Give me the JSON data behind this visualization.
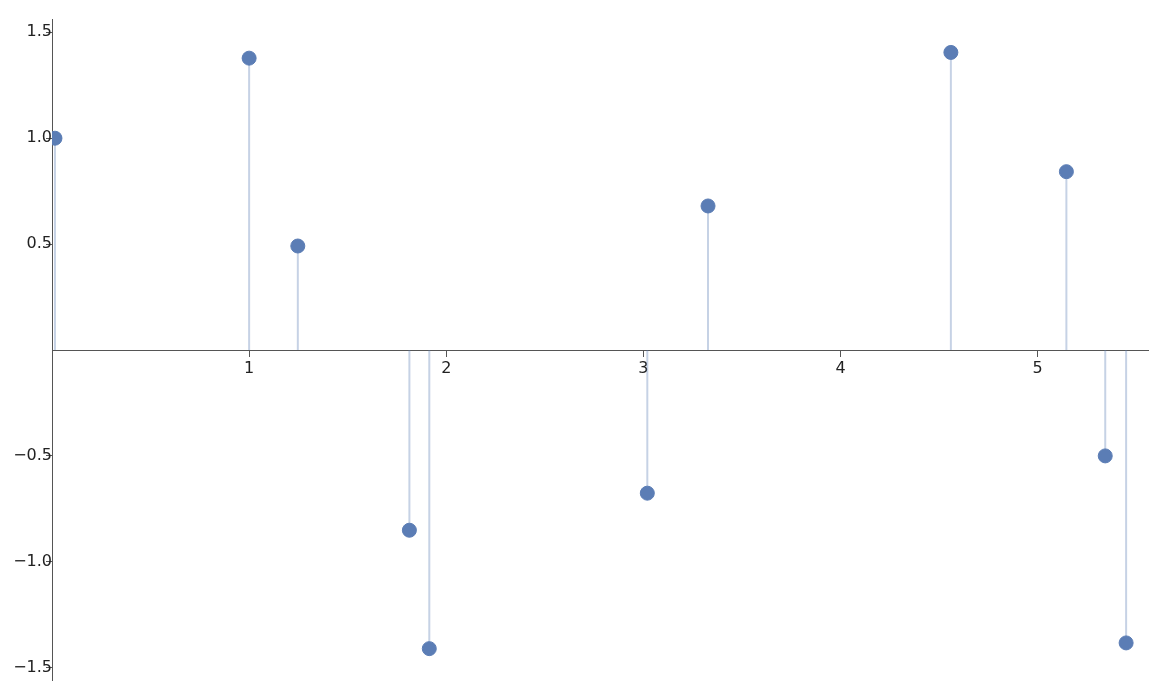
{
  "chart_data": {
    "type": "lollipop",
    "x": [
      0.015,
      1.0,
      1.247,
      1.813,
      1.914,
      3.02,
      3.328,
      4.56,
      5.146,
      5.343,
      5.449
    ],
    "values": [
      1.0,
      1.378,
      0.491,
      -0.851,
      -1.41,
      -0.676,
      0.68,
      1.405,
      0.842,
      -0.5,
      -1.383
    ],
    "color": "#5b7db5",
    "marker": "circle",
    "grid": false,
    "legend": false,
    "xlim": [
      0,
      5.56
    ],
    "ylim": [
      -1.56,
      1.56
    ],
    "xticks": [
      1,
      2,
      3,
      4,
      5
    ],
    "yticks": [
      {
        "value": -1.5,
        "label": "−1.5"
      },
      {
        "value": -1.0,
        "label": "−1.0"
      },
      {
        "value": -0.5,
        "label": "−0.5"
      },
      {
        "value": 0.5,
        "label": "0.5"
      },
      {
        "value": 1.0,
        "label": "1.0"
      },
      {
        "value": 1.5,
        "label": "1.5"
      }
    ]
  }
}
